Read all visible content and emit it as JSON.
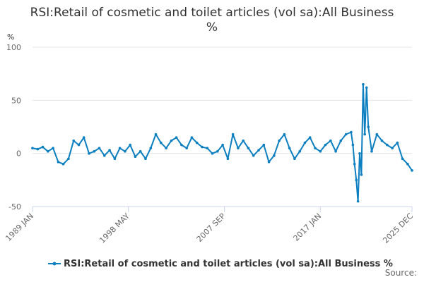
{
  "chart_data": {
    "type": "line",
    "title_line1": "RSI:Retail of cosmetic and toilet articles (vol sa):All Business",
    "title_line2": "%",
    "ylabel": "%",
    "ylim": [
      -50,
      100
    ],
    "yticks": [
      -50,
      0,
      50,
      100
    ],
    "xlim": [
      1989.0,
      2025.92
    ],
    "xticks": [
      {
        "label": "1989 JAN",
        "x": 1989.0
      },
      {
        "label": "1998 MAY",
        "x": 1998.33
      },
      {
        "label": "2007 SEP",
        "x": 2007.67
      },
      {
        "label": "2017 JAN",
        "x": 2017.0
      },
      {
        "label": "2025 DEC",
        "x": 2025.92
      }
    ],
    "color": "#0c7fc0",
    "series": [
      {
        "name": "RSI:Retail of cosmetic and toilet articles (vol sa):All Business %",
        "x": [
          1989.0,
          1989.5,
          1990.0,
          1990.5,
          1991.0,
          1991.5,
          1992.0,
          1992.5,
          1993.0,
          1993.5,
          1994.0,
          1994.5,
          1995.0,
          1995.5,
          1996.0,
          1996.5,
          1997.0,
          1997.5,
          1998.0,
          1998.5,
          1999.0,
          1999.5,
          2000.0,
          2000.5,
          2001.0,
          2001.5,
          2002.0,
          2002.5,
          2003.0,
          2003.5,
          2004.0,
          2004.5,
          2005.0,
          2005.5,
          2006.0,
          2006.5,
          2007.0,
          2007.5,
          2008.0,
          2008.5,
          2009.0,
          2009.5,
          2010.0,
          2010.5,
          2011.0,
          2011.5,
          2012.0,
          2012.5,
          2013.0,
          2013.5,
          2014.0,
          2014.5,
          2015.0,
          2015.5,
          2016.0,
          2016.5,
          2017.0,
          2017.5,
          2018.0,
          2018.5,
          2019.0,
          2019.5,
          2020.0,
          2020.17,
          2020.33,
          2020.5,
          2020.67,
          2020.83,
          2021.0,
          2021.17,
          2021.33,
          2021.5,
          2021.67,
          2022.0,
          2022.5,
          2023.0,
          2023.5,
          2024.0,
          2024.5,
          2025.0,
          2025.5,
          2025.92
        ],
        "y": [
          5,
          4,
          6,
          2,
          5,
          -8,
          -10,
          -5,
          12,
          8,
          15,
          0,
          2,
          5,
          -2,
          3,
          -5,
          5,
          2,
          8,
          -3,
          2,
          -5,
          5,
          18,
          10,
          5,
          12,
          15,
          8,
          5,
          15,
          10,
          6,
          5,
          0,
          2,
          8,
          -5,
          18,
          5,
          12,
          5,
          -2,
          3,
          8,
          -8,
          -2,
          12,
          18,
          5,
          -5,
          2,
          10,
          15,
          5,
          2,
          8,
          12,
          2,
          12,
          18,
          20,
          8,
          -10,
          -25,
          -45,
          0,
          -20,
          65,
          18,
          62,
          25,
          2,
          18,
          12,
          8,
          5,
          10,
          -5,
          -10,
          -16
        ]
      }
    ]
  },
  "legend": {
    "label": "RSI:Retail of cosmetic and toilet articles (vol sa):All Business %"
  },
  "footer": {
    "source_label": "Source:"
  }
}
